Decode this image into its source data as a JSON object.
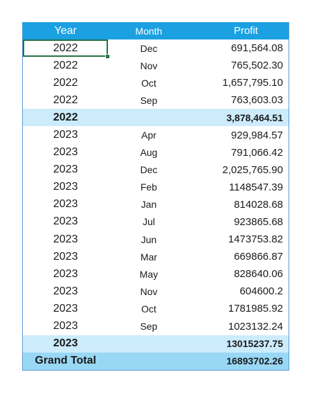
{
  "header": {
    "year": "Year",
    "month": "Month",
    "profit": "Profit"
  },
  "rows": [
    {
      "year": "2022",
      "month": "Dec",
      "profit": "691,564.08"
    },
    {
      "year": "2022",
      "month": "Nov",
      "profit": "765,502.30"
    },
    {
      "year": "2022",
      "month": "Oct",
      "profit": "1,657,795.10"
    },
    {
      "year": "2022",
      "month": "Sep",
      "profit": "763,603.03"
    },
    {
      "year": "2022",
      "month": "",
      "profit": "3,878,464.51"
    },
    {
      "year": "2023",
      "month": "Apr",
      "profit": "929,984.57"
    },
    {
      "year": "2023",
      "month": "Aug",
      "profit": "791,066.42"
    },
    {
      "year": "2023",
      "month": "Dec",
      "profit": "2,025,765.90"
    },
    {
      "year": "2023",
      "month": "Feb",
      "profit": "1148547.39"
    },
    {
      "year": "2023",
      "month": "Jan",
      "profit": "814028.68"
    },
    {
      "year": "2023",
      "month": "Jul",
      "profit": "923865.68"
    },
    {
      "year": "2023",
      "month": "Jun",
      "profit": "1473753.82"
    },
    {
      "year": "2023",
      "month": "Mar",
      "profit": "669866.87"
    },
    {
      "year": "2023",
      "month": "May",
      "profit": "828640.06"
    },
    {
      "year": "2023",
      "month": "Nov",
      "profit": "604600.2"
    },
    {
      "year": "2023",
      "month": "Oct",
      "profit": "1781985.92"
    },
    {
      "year": "2023",
      "month": "Sep",
      "profit": "1023132.24"
    },
    {
      "year": "2023",
      "month": "",
      "profit": "13015237.75"
    },
    {
      "year": "Grand Total",
      "month": "",
      "profit": "16893702.26"
    }
  ],
  "colors": {
    "header": "#1ba1e2",
    "subtotal": "#ccecfb",
    "grand_total": "#99d8f5",
    "selection": "#217346"
  }
}
